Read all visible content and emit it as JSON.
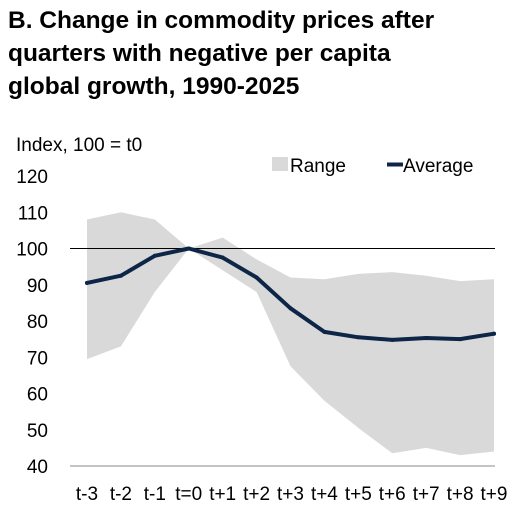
{
  "title_lines": [
    "B. Change in commodity prices after",
    "quarters with negative per capita",
    "global growth, 1990-2025"
  ],
  "chart_data": {
    "type": "area",
    "ylabel": "Index, 100 = t0",
    "ylim": [
      40,
      120
    ],
    "yticks": [
      40,
      50,
      60,
      70,
      80,
      90,
      100,
      110,
      120
    ],
    "categories": [
      "t-3",
      "t-2",
      "t-1",
      "t=0",
      "t+1",
      "t+2",
      "t+3",
      "t+4",
      "t+5",
      "t+6",
      "t+7",
      "t+8",
      "t+9"
    ],
    "reference_line": 100,
    "grid": false,
    "legend_position": "top-right",
    "series": [
      {
        "name": "Range",
        "kind": "band",
        "color": "#d9d9d9",
        "upper": [
          108,
          110,
          108,
          100,
          103,
          97,
          92,
          91.5,
          93,
          93.5,
          92.5,
          91,
          91.5
        ],
        "lower": [
          69.5,
          73,
          88,
          100,
          94,
          88,
          67.5,
          58,
          50.5,
          43.5,
          45,
          43,
          44
        ]
      },
      {
        "name": "Average",
        "kind": "line",
        "color": "#0d2546",
        "values": [
          90.5,
          92.5,
          98,
          100,
          97.5,
          92,
          83.5,
          77,
          75.5,
          74.8,
          75.3,
          75,
          76.5
        ]
      }
    ]
  }
}
